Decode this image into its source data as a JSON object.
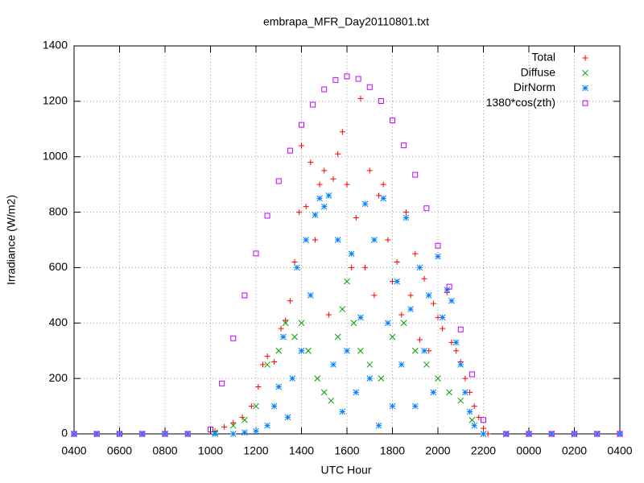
{
  "chart_data": {
    "type": "scatter",
    "title": "embrapa_MFR_Day20110801.txt",
    "x_label": "UTC Hour",
    "y_label": "Irradiance (W/m2)",
    "xlim": [
      4,
      28
    ],
    "ylim": [
      0,
      1400
    ],
    "xticks": [
      {
        "value": 4,
        "label": "0400"
      },
      {
        "value": 6,
        "label": "0600"
      },
      {
        "value": 8,
        "label": "0800"
      },
      {
        "value": 10,
        "label": "1000"
      },
      {
        "value": 12,
        "label": "1200"
      },
      {
        "value": 14,
        "label": "1400"
      },
      {
        "value": 16,
        "label": "1600"
      },
      {
        "value": 18,
        "label": "1800"
      },
      {
        "value": 20,
        "label": "2000"
      },
      {
        "value": 22,
        "label": "2200"
      },
      {
        "value": 24,
        "label": "0000"
      },
      {
        "value": 26,
        "label": "0200"
      },
      {
        "value": 28,
        "label": "0400"
      }
    ],
    "yticks": [
      0,
      200,
      400,
      600,
      800,
      1000,
      1200,
      1400
    ],
    "grid": true,
    "legend": "top-right",
    "series": [
      {
        "name": "Total",
        "color": "#ff0000",
        "marker": "plus",
        "x": [
          4,
          5,
          6,
          7,
          8,
          9,
          10.2,
          10.6,
          11,
          11.4,
          11.8,
          12.1,
          12.3,
          12.5,
          12.8,
          13.1,
          13.3,
          13.5,
          13.7,
          13.9,
          14.0,
          14.2,
          14.4,
          14.6,
          14.8,
          15.0,
          15.2,
          15.4,
          15.6,
          15.8,
          16.0,
          16.2,
          16.4,
          16.6,
          16.8,
          17.0,
          17.2,
          17.4,
          17.6,
          17.8,
          18.0,
          18.2,
          18.4,
          18.6,
          18.8,
          19.0,
          19.2,
          19.4,
          19.6,
          19.8,
          20.0,
          20.2,
          20.4,
          20.6,
          20.8,
          21.0,
          21.2,
          21.4,
          21.6,
          21.8,
          22.0,
          22.2,
          23,
          24,
          25,
          26,
          27,
          28
        ],
        "values": [
          0,
          0,
          0,
          0,
          0,
          0,
          10,
          25,
          40,
          60,
          100,
          170,
          250,
          280,
          260,
          380,
          410,
          480,
          620,
          800,
          1040,
          820,
          980,
          700,
          900,
          950,
          430,
          920,
          1010,
          1090,
          900,
          600,
          780,
          1210,
          600,
          950,
          500,
          860,
          900,
          700,
          550,
          620,
          430,
          800,
          500,
          650,
          340,
          560,
          300,
          470,
          420,
          380,
          510,
          330,
          300,
          260,
          200,
          150,
          100,
          60,
          20,
          0,
          0,
          0,
          0,
          0,
          0,
          0
        ]
      },
      {
        "name": "Diffuse",
        "color": "#00a000",
        "marker": "cross",
        "x": [
          4,
          5,
          6,
          7,
          8,
          9,
          10.2,
          11,
          11.5,
          12,
          12.5,
          13,
          13.3,
          13.7,
          14,
          14.3,
          14.7,
          15,
          15.3,
          15.6,
          15.8,
          16,
          16.3,
          16.6,
          17,
          17.5,
          18,
          18.5,
          19,
          19.5,
          20,
          20.5,
          21,
          21.5,
          22,
          23,
          24,
          25,
          26,
          27,
          28
        ],
        "values": [
          0,
          0,
          0,
          0,
          0,
          0,
          5,
          30,
          50,
          100,
          250,
          300,
          400,
          350,
          400,
          300,
          200,
          150,
          120,
          350,
          450,
          550,
          400,
          300,
          250,
          200,
          350,
          400,
          300,
          250,
          200,
          150,
          120,
          50,
          0,
          0,
          0,
          0,
          0,
          0,
          0
        ]
      },
      {
        "name": "DirNorm",
        "color": "#0080ff",
        "marker": "star",
        "x": [
          4,
          5,
          6,
          7,
          8,
          9,
          10.2,
          11,
          11.5,
          12,
          12.5,
          12.8,
          13.0,
          13.2,
          13.4,
          13.6,
          13.8,
          14.0,
          14.2,
          14.4,
          14.6,
          14.8,
          15.0,
          15.2,
          15.4,
          15.6,
          15.8,
          16.0,
          16.2,
          16.4,
          16.6,
          16.8,
          17.0,
          17.2,
          17.4,
          17.6,
          17.8,
          18.0,
          18.2,
          18.4,
          18.6,
          18.8,
          19.0,
          19.2,
          19.4,
          19.6,
          19.8,
          20.0,
          20.2,
          20.4,
          20.6,
          20.8,
          21.0,
          21.2,
          21.4,
          21.6,
          22.0,
          23,
          24,
          25,
          26,
          27,
          28
        ],
        "values": [
          0,
          0,
          0,
          0,
          0,
          0,
          0,
          0,
          5,
          10,
          30,
          100,
          170,
          350,
          60,
          200,
          600,
          300,
          700,
          500,
          790,
          850,
          820,
          860,
          250,
          700,
          80,
          300,
          650,
          150,
          420,
          830,
          200,
          700,
          30,
          850,
          400,
          100,
          550,
          250,
          780,
          450,
          100,
          600,
          300,
          500,
          150,
          640,
          420,
          520,
          480,
          330,
          250,
          150,
          80,
          30,
          0,
          0,
          0,
          0,
          0,
          0,
          0
        ]
      },
      {
        "name": "1380*cos(zth)",
        "color": "#c000ff",
        "marker": "square",
        "x": [
          4,
          5,
          6,
          7,
          8,
          9,
          10,
          10.5,
          11,
          11.5,
          12,
          12.5,
          13,
          13.5,
          14,
          14.5,
          15,
          15.5,
          16,
          16.5,
          17,
          17.5,
          18,
          18.5,
          19,
          19.5,
          20,
          20.5,
          21,
          21.5,
          22,
          23,
          24,
          25,
          26,
          27,
          28
        ],
        "values": [
          0,
          0,
          0,
          0,
          0,
          0,
          16,
          182,
          345,
          500,
          651,
          787,
          912,
          1022,
          1115,
          1188,
          1243,
          1277,
          1290,
          1281,
          1251,
          1201,
          1131,
          1041,
          935,
          814,
          679,
          531,
          377,
          215,
          50,
          0,
          0,
          0,
          0,
          0,
          0
        ]
      }
    ]
  }
}
